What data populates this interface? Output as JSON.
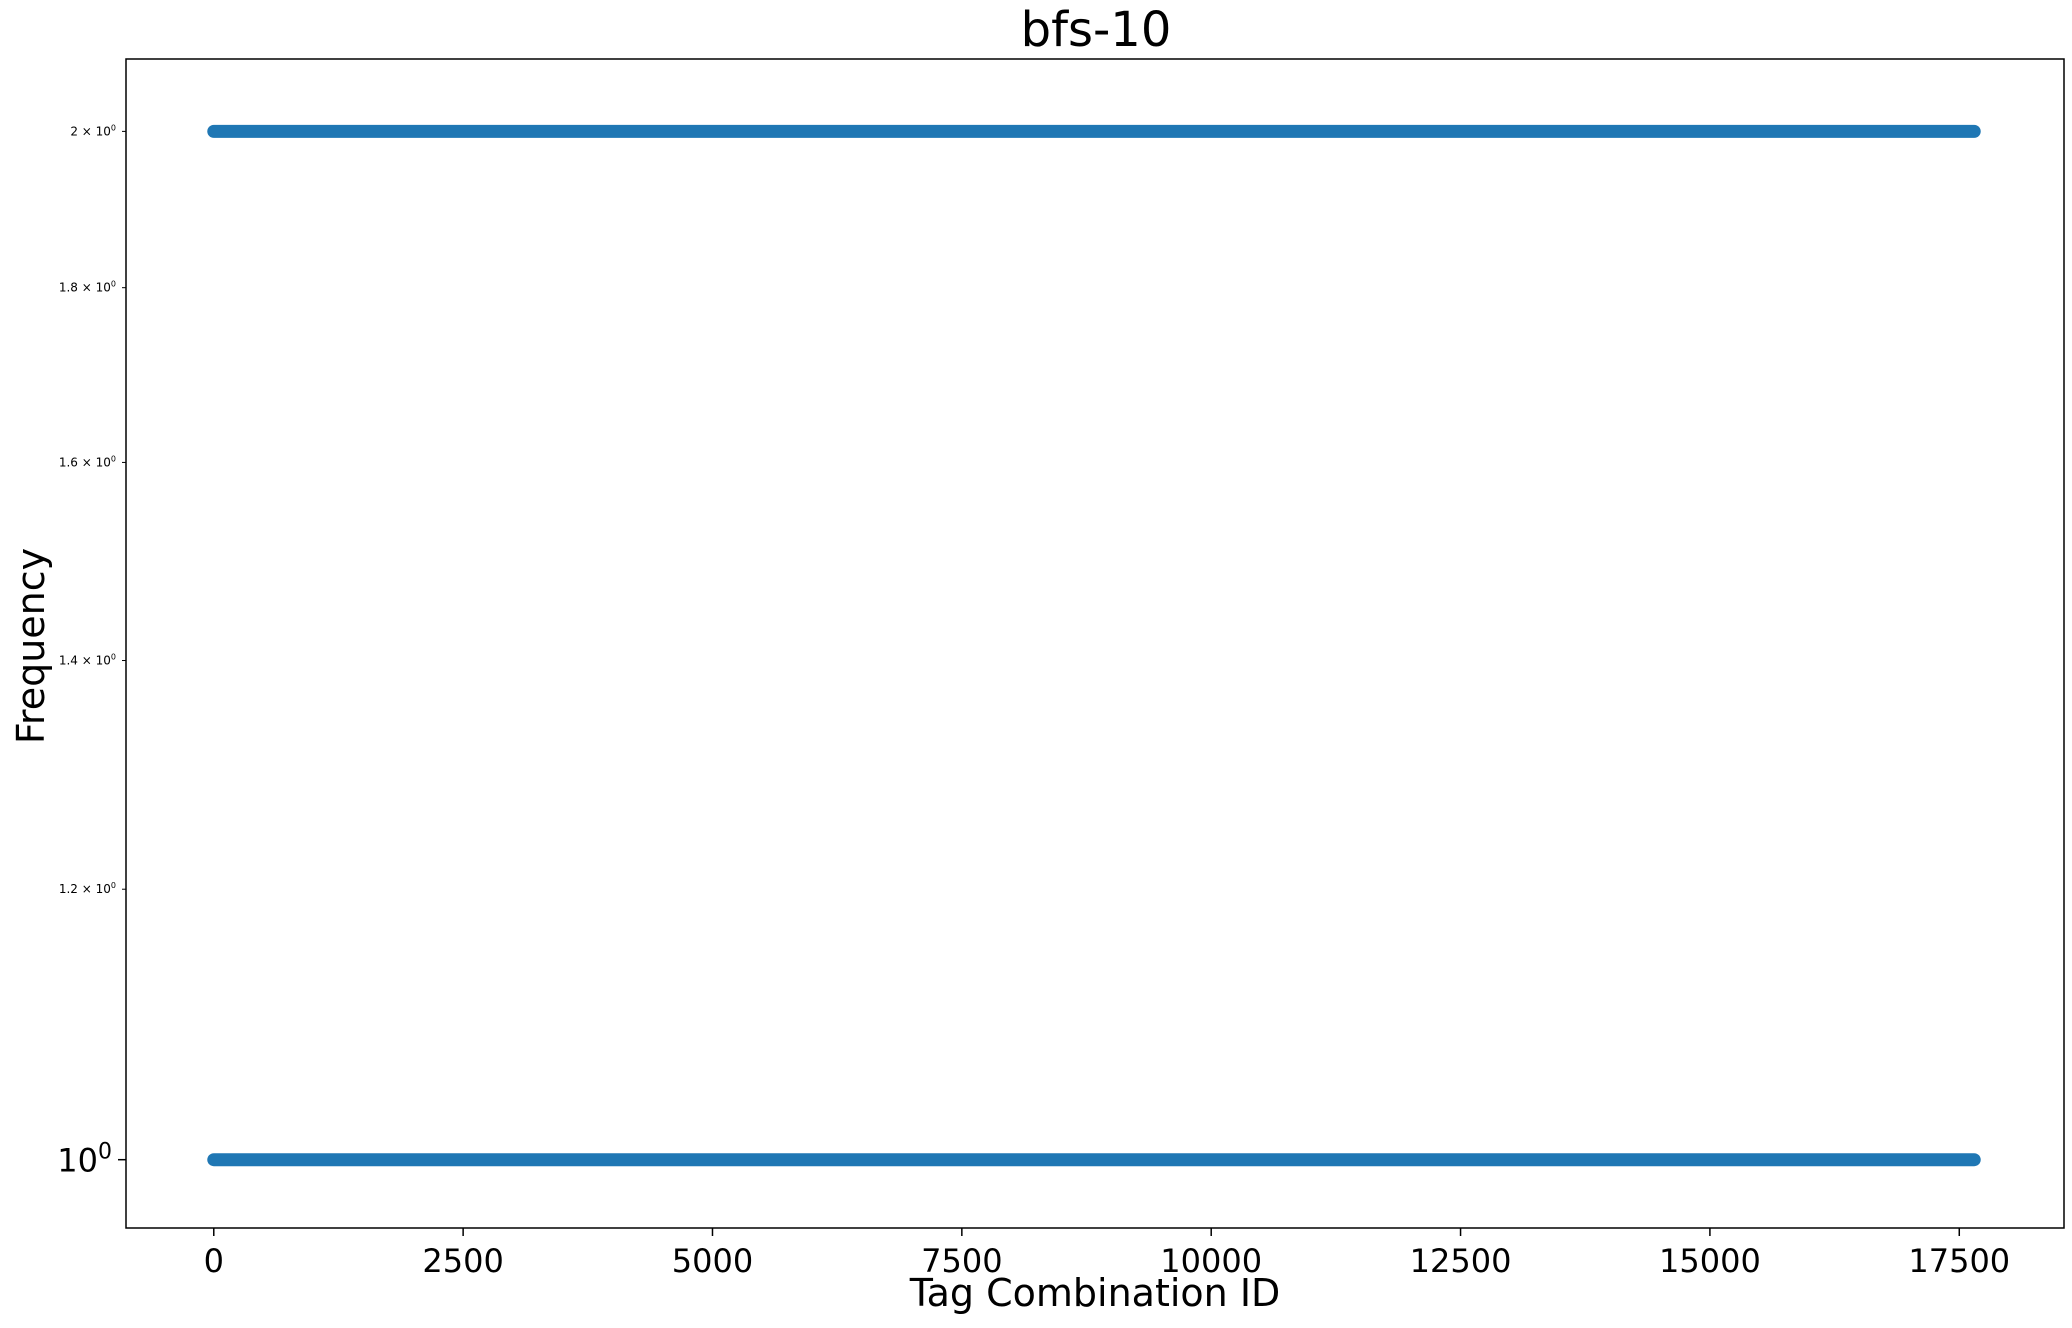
{
  "chart_data": {
    "type": "scatter",
    "title": "bfs-10",
    "xlabel": "Tag Combination ID",
    "ylabel": "Frequency",
    "xlim": [
      -880,
      18550
    ],
    "ylim": [
      0.955,
      2.1
    ],
    "yscale": "log",
    "x_ticks": [
      {
        "value": 0,
        "label": "0"
      },
      {
        "value": 2500,
        "label": "2500"
      },
      {
        "value": 5000,
        "label": "5000"
      },
      {
        "value": 7500,
        "label": "7500"
      },
      {
        "value": 10000,
        "label": "10000"
      },
      {
        "value": 12500,
        "label": "12500"
      },
      {
        "value": 15000,
        "label": "15000"
      },
      {
        "value": 17500,
        "label": "17500"
      }
    ],
    "y_ticks": [
      {
        "value": 1.0,
        "base": "10",
        "exp": "0",
        "major": true
      },
      {
        "value": 1.2,
        "base": "1.2 × 10",
        "exp": "0",
        "major": false
      },
      {
        "value": 1.4,
        "base": "1.4 × 10",
        "exp": "0",
        "major": false
      },
      {
        "value": 1.6,
        "base": "1.6 × 10",
        "exp": "0",
        "major": false
      },
      {
        "value": 1.8,
        "base": "1.8 × 10",
        "exp": "0",
        "major": false
      },
      {
        "value": 2.0,
        "base": "2 × 10",
        "exp": "0",
        "major": false
      }
    ],
    "series": [
      {
        "color": "#1f77b4",
        "x_range": [
          0,
          17650
        ],
        "y": 1
      },
      {
        "color": "#1f77b4",
        "x_range": [
          0,
          17650
        ],
        "y": 2
      }
    ],
    "grid": false,
    "legend": "none"
  }
}
